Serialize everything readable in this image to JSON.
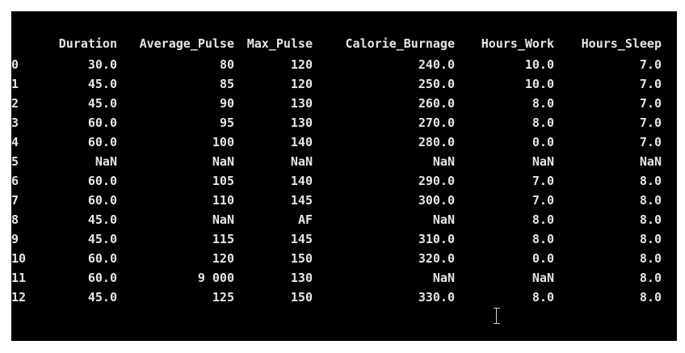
{
  "dataframe": {
    "columns": [
      "",
      "Duration",
      "Average_Pulse",
      "Max_Pulse",
      "Calorie_Burnage",
      "Hours_Work",
      "Hours_Sleep"
    ],
    "rows": [
      [
        "0",
        "30.0",
        "80",
        "120",
        "240.0",
        "10.0",
        "7.0"
      ],
      [
        "1",
        "45.0",
        "85",
        "120",
        "250.0",
        "10.0",
        "7.0"
      ],
      [
        "2",
        "45.0",
        "90",
        "130",
        "260.0",
        "8.0",
        "7.0"
      ],
      [
        "3",
        "60.0",
        "95",
        "130",
        "270.0",
        "8.0",
        "7.0"
      ],
      [
        "4",
        "60.0",
        "100",
        "140",
        "280.0",
        "0.0",
        "7.0"
      ],
      [
        "5",
        "NaN",
        "NaN",
        "NaN",
        "NaN",
        "NaN",
        "NaN"
      ],
      [
        "6",
        "60.0",
        "105",
        "140",
        "290.0",
        "7.0",
        "8.0"
      ],
      [
        "7",
        "60.0",
        "110",
        "145",
        "300.0",
        "7.0",
        "8.0"
      ],
      [
        "8",
        "45.0",
        "NaN",
        "AF",
        "NaN",
        "8.0",
        "8.0"
      ],
      [
        "9",
        "45.0",
        "115",
        "145",
        "310.0",
        "8.0",
        "8.0"
      ],
      [
        "10",
        "60.0",
        "120",
        "150",
        "320.0",
        "0.0",
        "8.0"
      ],
      [
        "11",
        "60.0",
        "9 000",
        "130",
        "NaN",
        "NaN",
        "8.0"
      ],
      [
        "12",
        "45.0",
        "125",
        "150",
        "330.0",
        "8.0",
        "8.0"
      ]
    ]
  },
  "colors": {
    "background": "#000000",
    "text": "#e6e6e6"
  },
  "cursor": {
    "icon": "text-cursor-icon"
  }
}
